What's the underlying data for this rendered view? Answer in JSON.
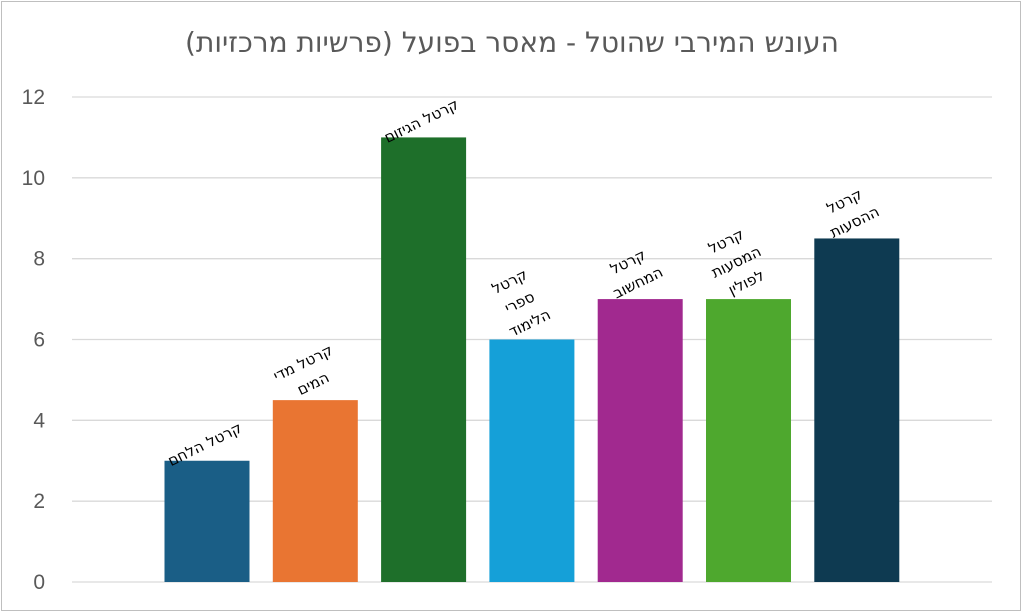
{
  "chart_data": {
    "type": "bar",
    "title": "העונש המירבי שהוטל - מאסר בפועל  (פרשיות מרכזיות)",
    "categories": [
      "קרטל הלחם",
      "קרטל מדי המים",
      "קרטל הגיזום",
      "קרטל ספרי הלימוד",
      "קרטל המחשוב",
      "קרטל המסעות לפולין",
      "קרטל ההסעות"
    ],
    "label_lines": [
      [
        "קרטל הלחם"
      ],
      [
        "קרטל מדי",
        "המים"
      ],
      [
        "קרטל הגיזום"
      ],
      [
        "קרטל",
        "ספרי",
        "הלימוד"
      ],
      [
        "קרטל",
        "המחשוב"
      ],
      [
        "קרטל",
        "המסעות",
        "לפולין"
      ],
      [
        "קרטל",
        "ההסעות"
      ]
    ],
    "values": [
      3,
      4.5,
      11,
      6,
      7,
      7,
      8.5
    ],
    "colors": [
      "#1a5e86",
      "#e97532",
      "#1e6f2a",
      "#15a0d8",
      "#a1298f",
      "#4ea82e",
      "#0e3a51"
    ],
    "ylim": [
      0,
      12
    ],
    "yticks": [
      0,
      2,
      4,
      6,
      8,
      10,
      12
    ],
    "grid": true,
    "legend": "none"
  }
}
